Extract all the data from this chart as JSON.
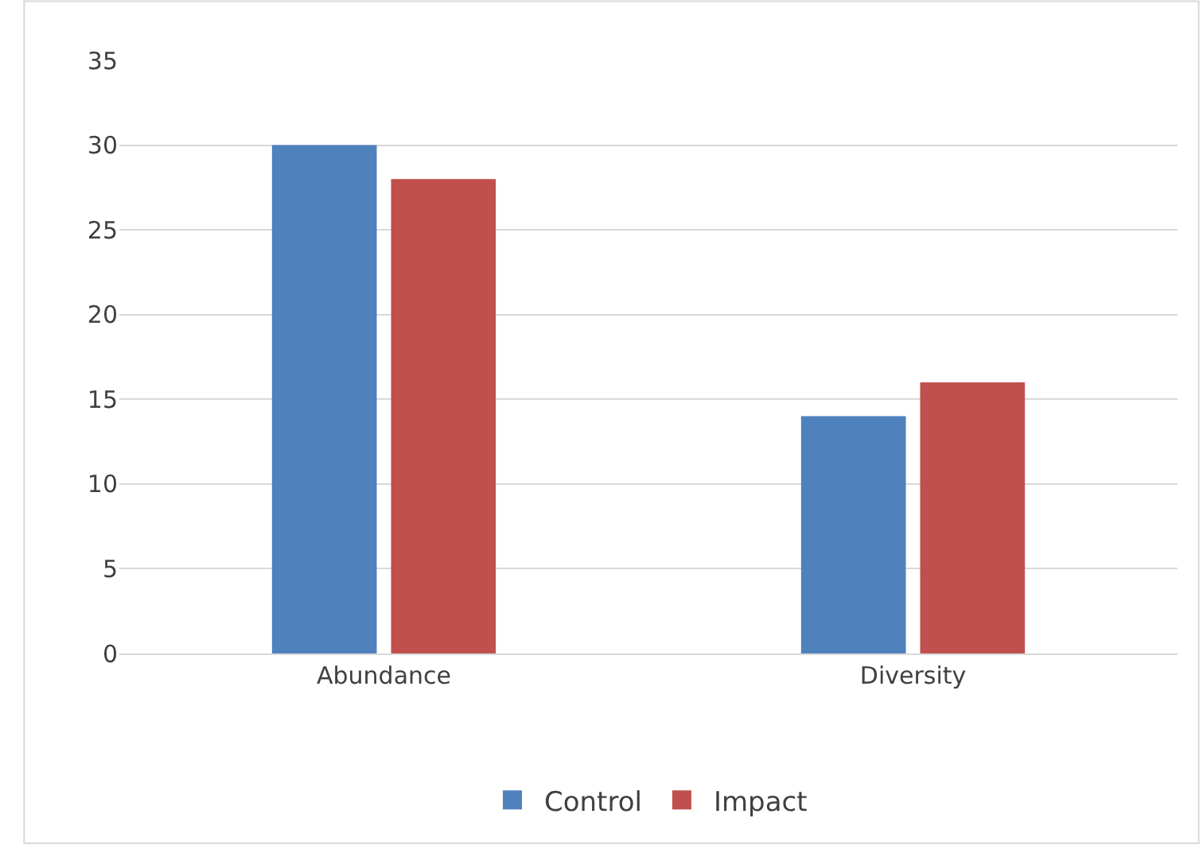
{
  "chart_data": {
    "type": "bar",
    "categories": [
      "Abundance",
      "Diversity"
    ],
    "series": [
      {
        "name": "Control",
        "color": "#4f81bd",
        "values": [
          30,
          14
        ]
      },
      {
        "name": "Impact",
        "color": "#c0504d",
        "values": [
          28,
          16
        ]
      }
    ],
    "ylim": [
      0,
      35
    ],
    "yticks": [
      0,
      5,
      10,
      15,
      20,
      25,
      30,
      35
    ],
    "grid": "y",
    "legend": "bottom"
  }
}
